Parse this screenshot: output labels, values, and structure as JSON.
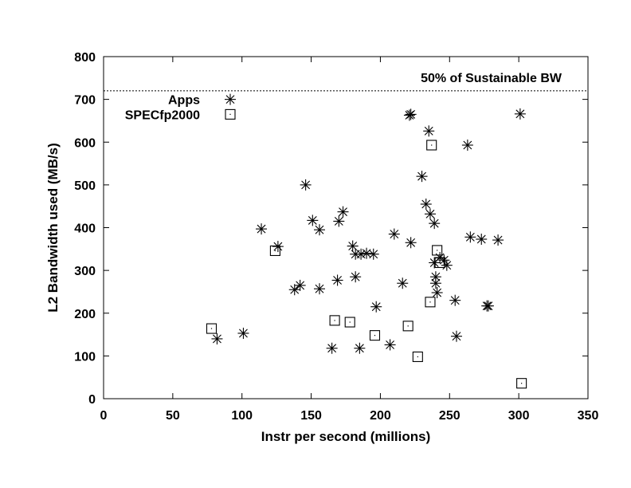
{
  "chart_data": {
    "type": "scatter",
    "title": "",
    "xlabel": "Instr per second (millions)",
    "ylabel": "L2 Bandwidth used (MB/s)",
    "xlim": [
      0,
      350
    ],
    "ylim": [
      0,
      800
    ],
    "xticks": [
      "0",
      "50",
      "100",
      "150",
      "200",
      "250",
      "300",
      "350"
    ],
    "yticks": [
      "0",
      "100",
      "200",
      "300",
      "400",
      "500",
      "600",
      "700",
      "800"
    ],
    "grid": false,
    "legend_position": "top-left",
    "reference_line": {
      "y": 720,
      "label": "50% of Sustainable BW"
    },
    "series": [
      {
        "name": "Apps",
        "marker": "asterisk",
        "points": [
          [
            82,
            140
          ],
          [
            101,
            153
          ],
          [
            114,
            397
          ],
          [
            126,
            356
          ],
          [
            138,
            255
          ],
          [
            142,
            265
          ],
          [
            146,
            500
          ],
          [
            151,
            417
          ],
          [
            156,
            257
          ],
          [
            156,
            395
          ],
          [
            169,
            277
          ],
          [
            170,
            415
          ],
          [
            173,
            437
          ],
          [
            165,
            118
          ],
          [
            180,
            357
          ],
          [
            182,
            338
          ],
          [
            182,
            285
          ],
          [
            186,
            338
          ],
          [
            185,
            118
          ],
          [
            190,
            340
          ],
          [
            195,
            338
          ],
          [
            197,
            215
          ],
          [
            207,
            126
          ],
          [
            210,
            385
          ],
          [
            216,
            270
          ],
          [
            221,
            663
          ],
          [
            222,
            665
          ],
          [
            222,
            365
          ],
          [
            230,
            520
          ],
          [
            233,
            455
          ],
          [
            235,
            626
          ],
          [
            236,
            432
          ],
          [
            239,
            410
          ],
          [
            239,
            318
          ],
          [
            240,
            270
          ],
          [
            240,
            285
          ],
          [
            241,
            248
          ],
          [
            243,
            330
          ],
          [
            246,
            324
          ],
          [
            248,
            312
          ],
          [
            254,
            230
          ],
          [
            255,
            146
          ],
          [
            263,
            593
          ],
          [
            265,
            378
          ],
          [
            273,
            373
          ],
          [
            277,
            217
          ],
          [
            278,
            217
          ],
          [
            285,
            371
          ],
          [
            301,
            666
          ]
        ]
      },
      {
        "name": "SPECfp2000",
        "marker": "square",
        "points": [
          [
            78,
            164
          ],
          [
            124,
            346
          ],
          [
            167,
            183
          ],
          [
            178,
            179
          ],
          [
            196,
            148
          ],
          [
            220,
            170
          ],
          [
            227,
            98
          ],
          [
            236,
            226
          ],
          [
            237,
            593
          ],
          [
            241,
            347
          ],
          [
            243,
            318
          ],
          [
            302,
            36
          ]
        ]
      }
    ]
  },
  "colors": {
    "background": "#ffffff",
    "axis": "#000000",
    "marker": "#000000"
  }
}
